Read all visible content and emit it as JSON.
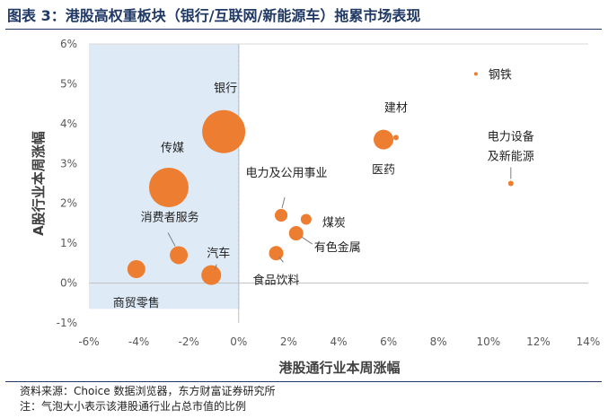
{
  "figure": {
    "title": "图表 3：港股高权重板块（银行/互联网/新能源车）拖累市场表现",
    "source": "资料来源：Choice 数据浏览器，东方财富证券研究所",
    "note": "注：气泡大小表示该港股通行业占总市值的比例"
  },
  "chart_data": {
    "type": "scatter",
    "xlabel": "港股通行业本周涨幅",
    "ylabel": "A股行业本周涨幅",
    "xlim": [
      -6,
      14
    ],
    "ylim": [
      -1,
      6
    ],
    "x_ticks": [
      "-6%",
      "-4%",
      "-2%",
      "0%",
      "2%",
      "4%",
      "6%",
      "8%",
      "10%",
      "12%",
      "14%"
    ],
    "y_ticks": [
      "-1%",
      "0%",
      "1%",
      "2%",
      "3%",
      "4%",
      "5%",
      "6%"
    ],
    "bubble_color": "#ed7d31",
    "highlight": {
      "x": [
        -6,
        0
      ],
      "y": [
        -0.65,
        6
      ],
      "color": "#deebf7"
    },
    "points": [
      {
        "label": "银行",
        "x": -0.6,
        "y": 3.8,
        "size": 24
      },
      {
        "label": "传媒",
        "x": -2.8,
        "y": 2.4,
        "size": 22
      },
      {
        "label": "消费者服务",
        "x": -2.4,
        "y": 0.7,
        "size": 10
      },
      {
        "label": "汽车",
        "x": -1.1,
        "y": 0.2,
        "size": 11
      },
      {
        "label": "商贸零售",
        "x": -4.1,
        "y": 0.35,
        "size": 10
      },
      {
        "label": "",
        "x": 1.7,
        "y": 1.7,
        "size": 7
      },
      {
        "label": "电力及公用事业",
        "x": 1.7,
        "y": 1.7,
        "size": 7
      },
      {
        "label": "煤炭",
        "x": 2.7,
        "y": 1.6,
        "size": 6
      },
      {
        "label": "有色金属",
        "x": 2.3,
        "y": 1.25,
        "size": 8
      },
      {
        "label": "食品饮料",
        "x": 1.5,
        "y": 0.75,
        "size": 8
      },
      {
        "label": "医药",
        "x": 5.8,
        "y": 3.6,
        "size": 11
      },
      {
        "label": "建材",
        "x": 6.3,
        "y": 3.65,
        "size": 3
      },
      {
        "label": "钢铁",
        "x": 9.5,
        "y": 5.25,
        "size": 2
      },
      {
        "label": "电力设备及新能源",
        "x": 10.9,
        "y": 2.5,
        "size": 3
      }
    ]
  }
}
